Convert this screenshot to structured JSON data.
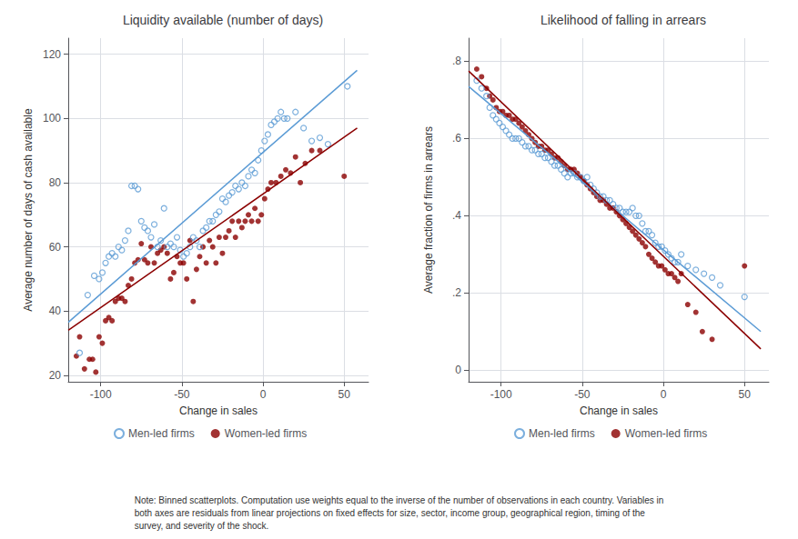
{
  "chart_data": [
    {
      "type": "scatter",
      "title": "Liquidity available (number of days)",
      "xlabel": "Change in sales",
      "ylabel": "Average number of days of cash available",
      "xlim": [
        -120,
        65
      ],
      "ylim": [
        18,
        125
      ],
      "xticks": [
        -100,
        -50,
        0,
        50
      ],
      "yticks": [
        20,
        40,
        60,
        80,
        100,
        120
      ],
      "grid": true,
      "legend": "bottom",
      "annotations": [
        "Note: Binned scatterplots. Computation use weights equal to the inverse of the number of observations in each country. Variables in\nboth axes are residuals from linear projections on fixed effects for size, sector, income group, geographical region, timing of the\nsurvey, and severity of the shock."
      ],
      "series": [
        {
          "name": "Women-led firms",
          "type": "scatter",
          "marker": "circle",
          "color": "#8b0000",
          "x": [
            -115,
            -113,
            -110,
            -107,
            -105,
            -103,
            -101,
            -99,
            -97,
            -95,
            -93,
            -91,
            -89,
            -87,
            -85,
            -83,
            -81,
            -79,
            -77,
            -75,
            -73,
            -71,
            -69,
            -67,
            -65,
            -63,
            -61,
            -59,
            -57,
            -55,
            -53,
            -51,
            -49,
            -47,
            -45,
            -43,
            -41,
            -39,
            -37,
            -35,
            -33,
            -31,
            -29,
            -27,
            -25,
            -23,
            -21,
            -19,
            -17,
            -15,
            -13,
            -11,
            -9,
            -7,
            -5,
            -3,
            -1,
            1,
            3,
            5,
            8,
            11,
            14,
            17,
            20,
            23,
            26,
            30,
            35,
            50
          ],
          "values": [
            26,
            32,
            22,
            25,
            25,
            21,
            32,
            30,
            37,
            38,
            37,
            43,
            44,
            44,
            43,
            48,
            50,
            55,
            56,
            61,
            56,
            55,
            60,
            55,
            58,
            59,
            60,
            58,
            50,
            52,
            57,
            55,
            55,
            50,
            62,
            43,
            53,
            57,
            60,
            55,
            62,
            60,
            55,
            63,
            58,
            63,
            65,
            68,
            63,
            68,
            66,
            68,
            70,
            68,
            72,
            68,
            70,
            75,
            78,
            80,
            80,
            82,
            84,
            83,
            88,
            80,
            86,
            90,
            90,
            82
          ]
        },
        {
          "name": "Men-led firms",
          "type": "scatter",
          "marker": "hollow",
          "color": "#5b9bd5",
          "x": [
            -113,
            -108,
            -104,
            -101,
            -99,
            -97,
            -95,
            -93,
            -91,
            -89,
            -87,
            -85,
            -83,
            -81,
            -79,
            -77,
            -75,
            -73,
            -71,
            -69,
            -67,
            -65,
            -63,
            -61,
            -59,
            -57,
            -55,
            -53,
            -51,
            -49,
            -47,
            -45,
            -43,
            -41,
            -39,
            -37,
            -35,
            -33,
            -31,
            -29,
            -27,
            -25,
            -23,
            -21,
            -19,
            -17,
            -15,
            -13,
            -11,
            -9,
            -7,
            -5,
            -3,
            -1,
            1,
            3,
            5,
            7,
            9,
            11,
            13,
            15,
            20,
            25,
            30,
            35,
            40,
            52
          ],
          "values": [
            27,
            45,
            51,
            50,
            52,
            55,
            57,
            58,
            57,
            60,
            59,
            62,
            65,
            79,
            79,
            78,
            68,
            66,
            65,
            63,
            67,
            60,
            62,
            72,
            60,
            61,
            60,
            63,
            59,
            57,
            58,
            60,
            63,
            62,
            60,
            65,
            66,
            68,
            68,
            70,
            71,
            75,
            74,
            76,
            77,
            79,
            78,
            80,
            79,
            82,
            84,
            83,
            87,
            90,
            93,
            95,
            98,
            99,
            100,
            102,
            100,
            100,
            102,
            97,
            93,
            94,
            92,
            110
          ]
        },
        {
          "type": "line",
          "color": "#5b9bd5",
          "x": [
            -120,
            58
          ],
          "values": [
            36.5,
            115
          ]
        },
        {
          "type": "line",
          "color": "#8b0000",
          "x": [
            -120,
            58
          ],
          "values": [
            34,
            97
          ]
        }
      ]
    },
    {
      "type": "scatter",
      "title": "Likelihood of falling in arrears",
      "xlabel": "Change in sales",
      "ylabel": "Average fraction of firms in arrears",
      "xlim": [
        -120,
        65
      ],
      "ylim": [
        -0.03,
        0.86
      ],
      "xticks": [
        -100,
        -50,
        0,
        50
      ],
      "yticks": [
        0,
        {
          "value": 0.2,
          "label": ".2"
        },
        {
          "value": 0.4,
          "label": ".4"
        },
        {
          "value": 0.6,
          "label": ".6"
        },
        {
          "value": 0.8,
          "label": ".8"
        }
      ],
      "grid": true,
      "legend": "bottom",
      "series": [
        {
          "name": "Women-led firms",
          "type": "scatter",
          "marker": "circle",
          "color": "#8b0000",
          "x": [
            -115,
            -112,
            -109,
            -107,
            -105,
            -103,
            -101,
            -99,
            -97,
            -95,
            -93,
            -91,
            -89,
            -87,
            -85,
            -83,
            -81,
            -79,
            -77,
            -75,
            -73,
            -71,
            -69,
            -67,
            -65,
            -63,
            -61,
            -59,
            -57,
            -55,
            -53,
            -51,
            -49,
            -47,
            -45,
            -43,
            -41,
            -39,
            -37,
            -35,
            -33,
            -31,
            -29,
            -27,
            -25,
            -23,
            -21,
            -19,
            -17,
            -15,
            -13,
            -11,
            -9,
            -7,
            -5,
            -3,
            -1,
            1,
            3,
            5,
            7,
            9,
            11,
            15,
            20,
            24,
            30,
            50
          ],
          "values": [
            0.78,
            0.76,
            0.73,
            0.71,
            0.7,
            0.68,
            0.67,
            0.67,
            0.66,
            0.66,
            0.65,
            0.65,
            0.64,
            0.63,
            0.62,
            0.61,
            0.6,
            0.59,
            0.58,
            0.58,
            0.57,
            0.57,
            0.56,
            0.55,
            0.55,
            0.54,
            0.53,
            0.52,
            0.52,
            0.52,
            0.51,
            0.5,
            0.49,
            0.48,
            0.47,
            0.46,
            0.45,
            0.44,
            0.44,
            0.43,
            0.42,
            0.42,
            0.41,
            0.4,
            0.39,
            0.38,
            0.37,
            0.36,
            0.35,
            0.34,
            0.33,
            0.32,
            0.3,
            0.29,
            0.28,
            0.27,
            0.27,
            0.26,
            0.25,
            0.25,
            0.24,
            0.23,
            0.25,
            0.17,
            0.15,
            0.1,
            0.08,
            0.27
          ]
        },
        {
          "name": "Men-led firms",
          "type": "scatter",
          "marker": "hollow",
          "color": "#5b9bd5",
          "x": [
            -115,
            -112,
            -109,
            -107,
            -105,
            -103,
            -101,
            -99,
            -97,
            -95,
            -93,
            -91,
            -89,
            -87,
            -85,
            -83,
            -81,
            -79,
            -77,
            -75,
            -73,
            -71,
            -69,
            -67,
            -65,
            -63,
            -61,
            -59,
            -57,
            -55,
            -53,
            -51,
            -49,
            -47,
            -45,
            -43,
            -41,
            -39,
            -37,
            -35,
            -33,
            -31,
            -29,
            -27,
            -25,
            -23,
            -21,
            -19,
            -17,
            -15,
            -13,
            -11,
            -9,
            -7,
            -5,
            -3,
            -1,
            1,
            3,
            5,
            7,
            9,
            11,
            15,
            20,
            25,
            30,
            35,
            50
          ],
          "values": [
            0.75,
            0.73,
            0.71,
            0.68,
            0.66,
            0.65,
            0.64,
            0.63,
            0.62,
            0.61,
            0.6,
            0.6,
            0.6,
            0.59,
            0.58,
            0.58,
            0.57,
            0.57,
            0.56,
            0.56,
            0.55,
            0.55,
            0.54,
            0.53,
            0.53,
            0.52,
            0.51,
            0.5,
            0.51,
            0.51,
            0.5,
            0.5,
            0.49,
            0.5,
            0.48,
            0.47,
            0.46,
            0.45,
            0.45,
            0.44,
            0.44,
            0.43,
            0.42,
            0.42,
            0.41,
            0.41,
            0.41,
            0.42,
            0.4,
            0.4,
            0.38,
            0.36,
            0.36,
            0.35,
            0.33,
            0.32,
            0.32,
            0.31,
            0.3,
            0.29,
            0.28,
            0.28,
            0.3,
            0.27,
            0.26,
            0.25,
            0.24,
            0.22,
            0.19
          ]
        },
        {
          "type": "line",
          "color": "#5b9bd5",
          "x": [
            -120,
            60
          ],
          "values": [
            0.735,
            0.1
          ]
        },
        {
          "type": "line",
          "color": "#8b0000",
          "x": [
            -120,
            60
          ],
          "values": [
            0.775,
            0.055
          ]
        }
      ]
    }
  ]
}
